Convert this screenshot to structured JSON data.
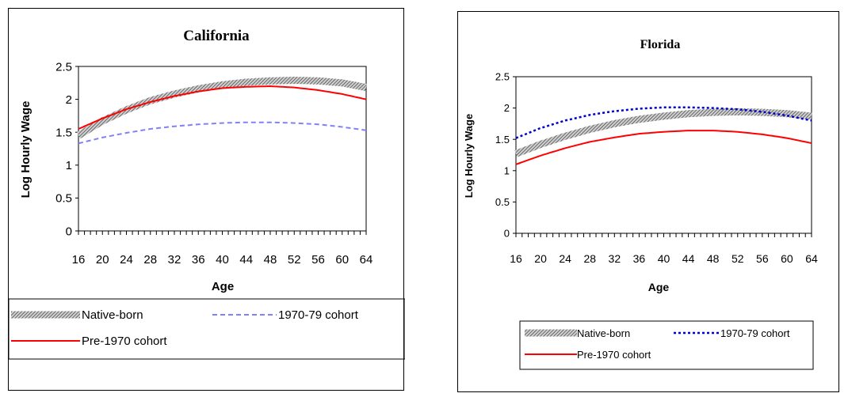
{
  "chart_data": [
    {
      "type": "line",
      "title": "California",
      "xlabel": "Age",
      "ylabel": "Log Hourly Wage",
      "x": [
        16,
        20,
        24,
        28,
        32,
        36,
        40,
        44,
        48,
        52,
        56,
        60,
        64
      ],
      "x_tick_labels": [
        "16",
        "20",
        "24",
        "28",
        "32",
        "36",
        "40",
        "44",
        "48",
        "52",
        "56",
        "60",
        "64"
      ],
      "y_tick_labels": [
        "0",
        "0.5",
        "1",
        "1.5",
        "2",
        "2.5"
      ],
      "xlim": [
        16,
        64
      ],
      "ylim": [
        0,
        2.5
      ],
      "legend_position": "bottom",
      "series": [
        {
          "name": "Native-born",
          "values": [
            1.45,
            1.67,
            1.84,
            1.98,
            2.08,
            2.16,
            2.22,
            2.26,
            2.28,
            2.29,
            2.28,
            2.25,
            2.18
          ],
          "color": "#808080",
          "style": "hatched"
        },
        {
          "name": "1970-79 cohort",
          "values": [
            1.33,
            1.42,
            1.49,
            1.55,
            1.59,
            1.62,
            1.64,
            1.65,
            1.65,
            1.64,
            1.62,
            1.58,
            1.53
          ],
          "color": "#8080ff",
          "style": "dashed"
        },
        {
          "name": "Pre-1970 cohort",
          "values": [
            1.55,
            1.71,
            1.85,
            1.96,
            2.05,
            2.12,
            2.17,
            2.19,
            2.2,
            2.18,
            2.14,
            2.08,
            2.0
          ],
          "color": "#ff0000",
          "style": "solid"
        }
      ]
    },
    {
      "type": "line",
      "title": "Florida",
      "xlabel": "Age",
      "ylabel": "Log Hourly Wage",
      "x": [
        16,
        20,
        24,
        28,
        32,
        36,
        40,
        44,
        48,
        52,
        56,
        60,
        64
      ],
      "x_tick_labels": [
        "16",
        "20",
        "24",
        "28",
        "32",
        "36",
        "40",
        "44",
        "48",
        "52",
        "56",
        "60",
        "64"
      ],
      "y_tick_labels": [
        "0",
        "0.5",
        "1",
        "1.5",
        "2",
        "2.5"
      ],
      "xlim": [
        16,
        64
      ],
      "ylim": [
        0,
        2.5
      ],
      "legend_position": "bottom",
      "series": [
        {
          "name": "Native-born",
          "values": [
            1.27,
            1.42,
            1.55,
            1.66,
            1.75,
            1.82,
            1.87,
            1.91,
            1.93,
            1.94,
            1.93,
            1.91,
            1.87
          ],
          "color": "#808080",
          "style": "hatched"
        },
        {
          "name": "1970-79 cohort",
          "values": [
            1.52,
            1.68,
            1.8,
            1.89,
            1.95,
            1.99,
            2.01,
            2.01,
            2.0,
            1.98,
            1.94,
            1.88,
            1.8
          ],
          "color": "#0000cc",
          "style": "dotted"
        },
        {
          "name": "Pre-1970 cohort",
          "values": [
            1.1,
            1.24,
            1.36,
            1.46,
            1.53,
            1.59,
            1.62,
            1.64,
            1.64,
            1.62,
            1.58,
            1.52,
            1.44
          ],
          "color": "#ff0000",
          "style": "solid"
        }
      ]
    }
  ]
}
